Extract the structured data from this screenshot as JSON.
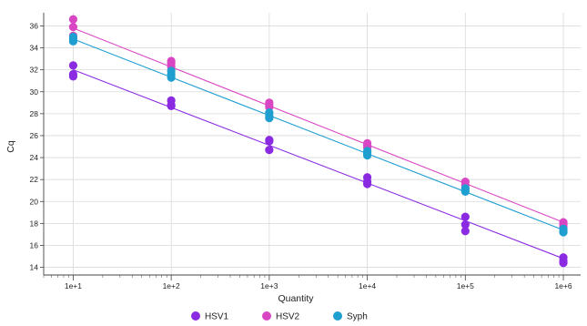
{
  "chart_data": {
    "type": "scatter",
    "title": "",
    "xlabel": "Quantity",
    "ylabel": "Cq",
    "x_scale": "log",
    "xlim": [
      5,
      1500000
    ],
    "ylim": [
      13.3,
      37.2
    ],
    "x_ticks": [
      {
        "value": 10,
        "label": "1e+1"
      },
      {
        "value": 100,
        "label": "1e+2"
      },
      {
        "value": 1000,
        "label": "1e+3"
      },
      {
        "value": 10000,
        "label": "1e+4"
      },
      {
        "value": 100000,
        "label": "1e+5"
      },
      {
        "value": 1000000,
        "label": "1e+6"
      }
    ],
    "y_ticks": [
      14,
      16,
      18,
      20,
      22,
      24,
      26,
      28,
      30,
      32,
      34,
      36
    ],
    "grid": true,
    "legend_position": "bottom-center",
    "series": [
      {
        "name": "HSV1",
        "color": "#8a2be2",
        "points": [
          {
            "x": 10,
            "y": 32.4
          },
          {
            "x": 10,
            "y": 31.6
          },
          {
            "x": 10,
            "y": 31.4
          },
          {
            "x": 100,
            "y": 29.2
          },
          {
            "x": 100,
            "y": 28.8
          },
          {
            "x": 100,
            "y": 28.7
          },
          {
            "x": 1000,
            "y": 25.6
          },
          {
            "x": 1000,
            "y": 25.5
          },
          {
            "x": 1000,
            "y": 24.7
          },
          {
            "x": 10000,
            "y": 22.2
          },
          {
            "x": 10000,
            "y": 21.8
          },
          {
            "x": 10000,
            "y": 21.6
          },
          {
            "x": 100000,
            "y": 18.6
          },
          {
            "x": 100000,
            "y": 17.9
          },
          {
            "x": 100000,
            "y": 17.3
          },
          {
            "x": 1000000,
            "y": 14.9
          },
          {
            "x": 1000000,
            "y": 14.6
          },
          {
            "x": 1000000,
            "y": 14.4
          }
        ],
        "trendline": [
          {
            "x": 10,
            "y": 32.0
          },
          {
            "x": 1000000,
            "y": 14.8
          }
        ]
      },
      {
        "name": "HSV2",
        "color": "#d946c4",
        "points": [
          {
            "x": 10,
            "y": 36.6
          },
          {
            "x": 10,
            "y": 35.9
          },
          {
            "x": 10,
            "y": 35.1
          },
          {
            "x": 100,
            "y": 32.8
          },
          {
            "x": 100,
            "y": 32.6
          },
          {
            "x": 100,
            "y": 32.3
          },
          {
            "x": 1000,
            "y": 29.0
          },
          {
            "x": 1000,
            "y": 28.8
          },
          {
            "x": 1000,
            "y": 28.6
          },
          {
            "x": 10000,
            "y": 25.3
          },
          {
            "x": 10000,
            "y": 25.1
          },
          {
            "x": 10000,
            "y": 24.9
          },
          {
            "x": 100000,
            "y": 21.8
          },
          {
            "x": 100000,
            "y": 21.5
          },
          {
            "x": 100000,
            "y": 21.2
          },
          {
            "x": 1000000,
            "y": 18.1
          },
          {
            "x": 1000000,
            "y": 17.9
          },
          {
            "x": 1000000,
            "y": 17.7
          }
        ],
        "trendline": [
          {
            "x": 10,
            "y": 35.8
          },
          {
            "x": 1000000,
            "y": 18.1
          }
        ]
      },
      {
        "name": "Syph",
        "color": "#1e9fd0",
        "points": [
          {
            "x": 10,
            "y": 35.0
          },
          {
            "x": 10,
            "y": 34.8
          },
          {
            "x": 10,
            "y": 34.6
          },
          {
            "x": 100,
            "y": 31.9
          },
          {
            "x": 100,
            "y": 31.6
          },
          {
            "x": 100,
            "y": 31.3
          },
          {
            "x": 1000,
            "y": 28.1
          },
          {
            "x": 1000,
            "y": 27.8
          },
          {
            "x": 1000,
            "y": 27.6
          },
          {
            "x": 10000,
            "y": 24.6
          },
          {
            "x": 10000,
            "y": 24.4
          },
          {
            "x": 10000,
            "y": 24.2
          },
          {
            "x": 100000,
            "y": 21.2
          },
          {
            "x": 100000,
            "y": 21.0
          },
          {
            "x": 100000,
            "y": 20.9
          },
          {
            "x": 1000000,
            "y": 17.5
          },
          {
            "x": 1000000,
            "y": 17.3
          },
          {
            "x": 1000000,
            "y": 17.2
          }
        ],
        "trendline": [
          {
            "x": 10,
            "y": 34.8
          },
          {
            "x": 1000000,
            "y": 17.4
          }
        ]
      }
    ]
  }
}
